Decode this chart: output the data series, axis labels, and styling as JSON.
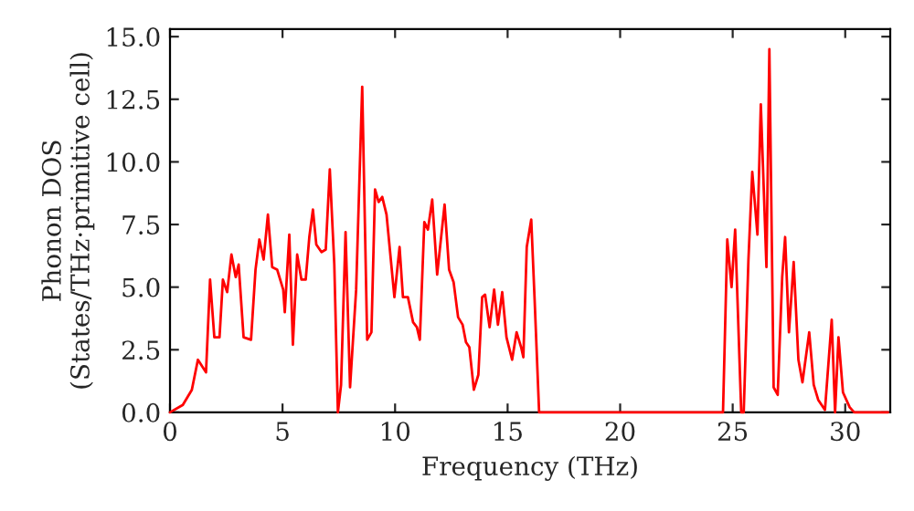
{
  "chart_data": {
    "type": "line",
    "xlabel": "Frequency (THz)",
    "ylabel": "Phonon DOS\n(States/THz·primitive cell)",
    "xlim": [
      0,
      32
    ],
    "ylim": [
      0.0,
      15.3
    ],
    "xticks": [
      0,
      5,
      10,
      15,
      20,
      25,
      30
    ],
    "yticks": [
      {
        "value": 0,
        "label": "0.0"
      },
      2.5,
      {
        "value": 5,
        "label": "5.0"
      },
      7.5,
      {
        "value": 10,
        "label": "10.0"
      },
      12.5,
      {
        "value": 15,
        "label": "15.0"
      }
    ],
    "grid": false,
    "legend": false,
    "marker": "none",
    "line_style": "solid",
    "series": [
      {
        "color": "#ff0000",
        "x": [
          0,
          0.57,
          0.97,
          1.24,
          1.6,
          1.78,
          1.97,
          2.2,
          2.35,
          2.54,
          2.73,
          2.92,
          3.05,
          3.27,
          3.6,
          3.8,
          3.97,
          4.16,
          4.35,
          4.54,
          4.76,
          5.03,
          5.1,
          5.3,
          5.46,
          5.65,
          5.84,
          6.03,
          6.19,
          6.35,
          6.5,
          6.73,
          6.92,
          7.1,
          7.3,
          7.46,
          7.6,
          7.8,
          8.0,
          8.27,
          8.54,
          8.76,
          8.95,
          9.11,
          9.27,
          9.43,
          9.62,
          9.97,
          10.2,
          10.35,
          10.57,
          10.8,
          10.97,
          11.1,
          11.3,
          11.46,
          11.65,
          11.87,
          12.2,
          12.4,
          12.6,
          12.8,
          13.0,
          13.15,
          13.3,
          13.5,
          13.7,
          13.87,
          14.0,
          14.2,
          14.4,
          14.57,
          14.76,
          14.95,
          15.2,
          15.4,
          15.6,
          15.7,
          15.85,
          16.05,
          16.2,
          16.4,
          24.57,
          24.76,
          24.95,
          25.11,
          25.38,
          25.49,
          25.7,
          25.87,
          26.1,
          26.25,
          26.5,
          26.63,
          26.82,
          27.0,
          27.2,
          27.33,
          27.5,
          27.71,
          27.92,
          28.1,
          28.4,
          28.6,
          28.8,
          29.1,
          29.4,
          29.55,
          29.7,
          29.9,
          30.2,
          30.4,
          31.9
        ],
        "values": [
          0,
          0.3,
          0.9,
          2.1,
          1.6,
          5.3,
          3.0,
          3.0,
          5.3,
          4.8,
          6.3,
          5.4,
          5.9,
          3.0,
          2.9,
          5.7,
          6.9,
          6.1,
          7.9,
          5.8,
          5.7,
          4.9,
          4.0,
          7.1,
          2.7,
          6.3,
          5.3,
          5.3,
          7.0,
          8.1,
          6.7,
          6.4,
          6.5,
          9.7,
          5.9,
          0,
          1.1,
          7.2,
          1.0,
          4.9,
          13.0,
          2.9,
          3.2,
          8.9,
          8.4,
          8.6,
          7.9,
          4.6,
          6.6,
          4.6,
          4.6,
          3.6,
          3.4,
          2.9,
          7.6,
          7.3,
          8.5,
          5.5,
          8.3,
          5.7,
          5.2,
          3.8,
          3.5,
          2.8,
          2.6,
          0.9,
          1.5,
          4.6,
          4.7,
          3.4,
          4.9,
          3.5,
          4.8,
          3.0,
          2.1,
          3.2,
          2.6,
          2.2,
          6.6,
          7.7,
          4.5,
          0,
          0,
          6.9,
          5.0,
          7.3,
          0,
          0,
          6.1,
          9.6,
          7.1,
          12.3,
          5.8,
          14.5,
          1.0,
          0.7,
          5.4,
          7.0,
          3.2,
          6.0,
          2.1,
          1.2,
          3.2,
          1.1,
          0.5,
          0.1,
          3.7,
          0,
          3.0,
          0.8,
          0.2,
          0,
          0
        ]
      }
    ]
  }
}
